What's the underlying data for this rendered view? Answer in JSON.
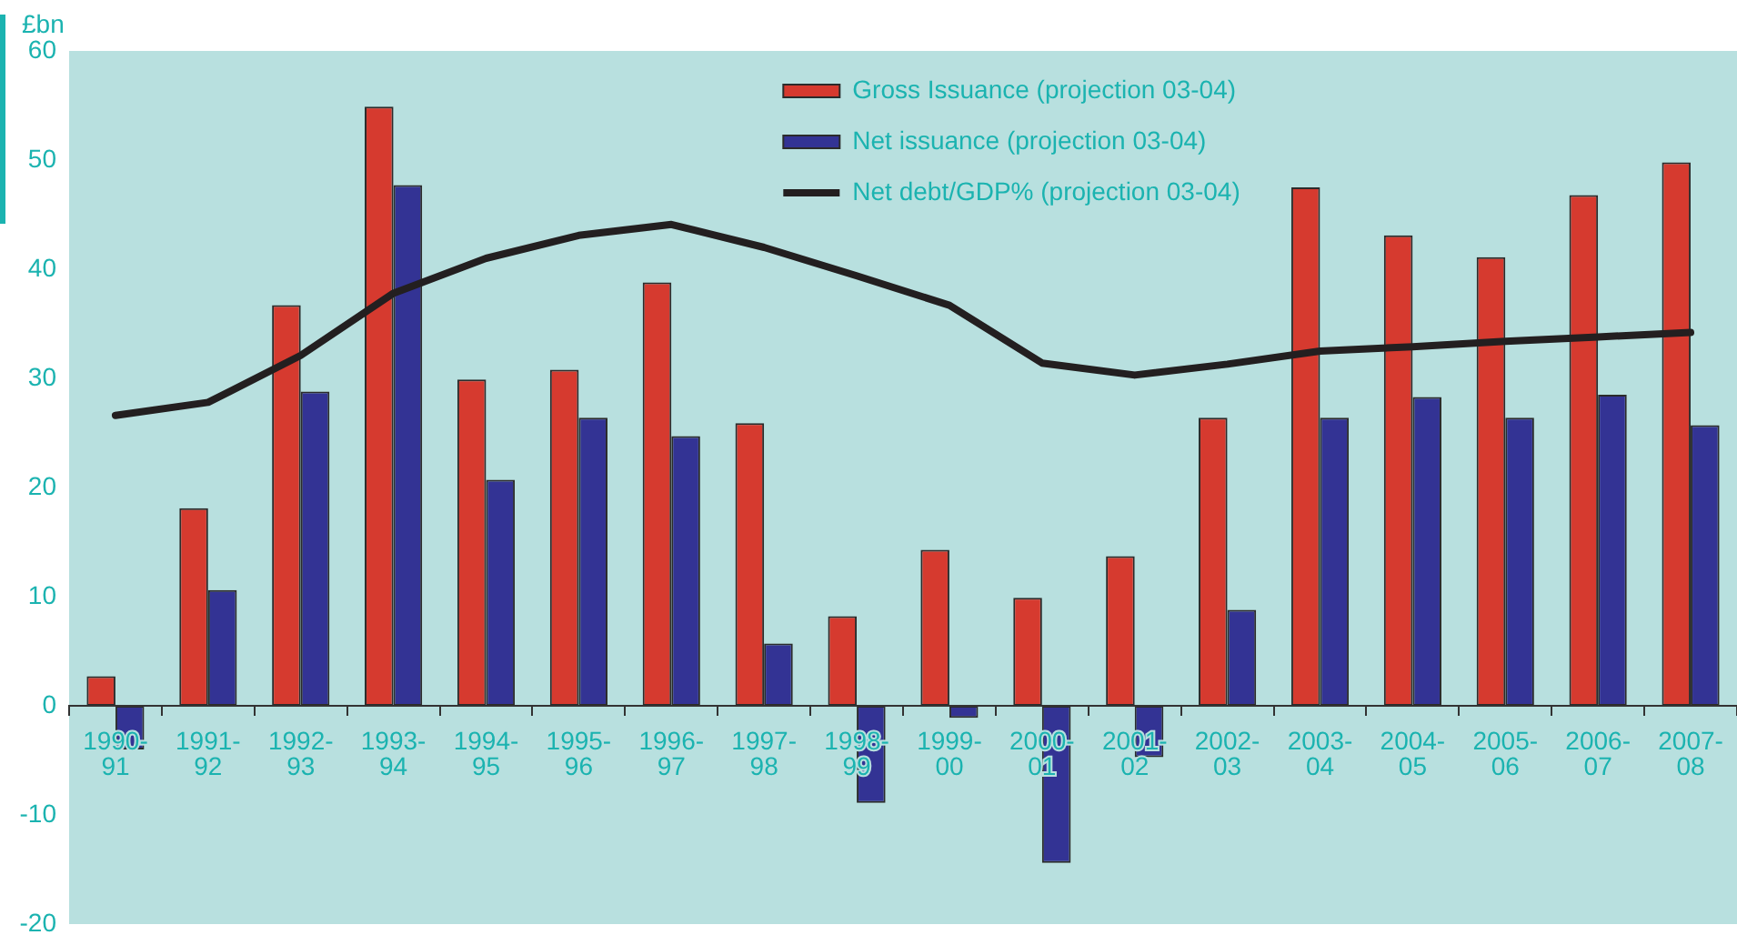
{
  "chart_data": {
    "type": "bar",
    "ylabel": "£bn",
    "categories": [
      "1990-91",
      "1991-92",
      "1992-93",
      "1993-94",
      "1994-95",
      "1995-96",
      "1996-97",
      "1997-98",
      "1998-99",
      "1999-00",
      "2000-01",
      "2001-02",
      "2002-03",
      "2003-04",
      "2004-05",
      "2005-06",
      "2006-07",
      "2007-08"
    ],
    "series": [
      {
        "name": "Gross Issuance (projection 03-04)",
        "color": "#d63a2f",
        "values": [
          2.7,
          18.1,
          36.7,
          54.9,
          29.9,
          30.8,
          38.8,
          25.9,
          8.2,
          14.3,
          9.9,
          13.7,
          26.4,
          47.5,
          43.1,
          41.1,
          46.8,
          49.8
        ]
      },
      {
        "name": "Net issuance (projection 03-04)",
        "color": "#333394",
        "values": [
          -4.0,
          10.6,
          28.8,
          47.7,
          20.7,
          26.4,
          24.7,
          5.7,
          -8.9,
          -1.1,
          -14.4,
          -4.7,
          8.8,
          26.4,
          28.3,
          26.4,
          28.5,
          25.7
        ]
      },
      {
        "name": "Net debt/GDP% (projection 03-04)",
        "type": "line",
        "color": "#231f20",
        "values": [
          26.6,
          27.8,
          32.1,
          37.8,
          41.0,
          43.1,
          44.1,
          42.0,
          39.4,
          36.7,
          31.4,
          30.3,
          31.3,
          32.5,
          32.9,
          33.4,
          33.8,
          34.2
        ]
      }
    ],
    "ylim": [
      -20,
      60
    ],
    "yticks": [
      -20,
      -10,
      0,
      10,
      20,
      30,
      40,
      50,
      60
    ],
    "grid": false,
    "legend": "top",
    "marker": "none"
  }
}
